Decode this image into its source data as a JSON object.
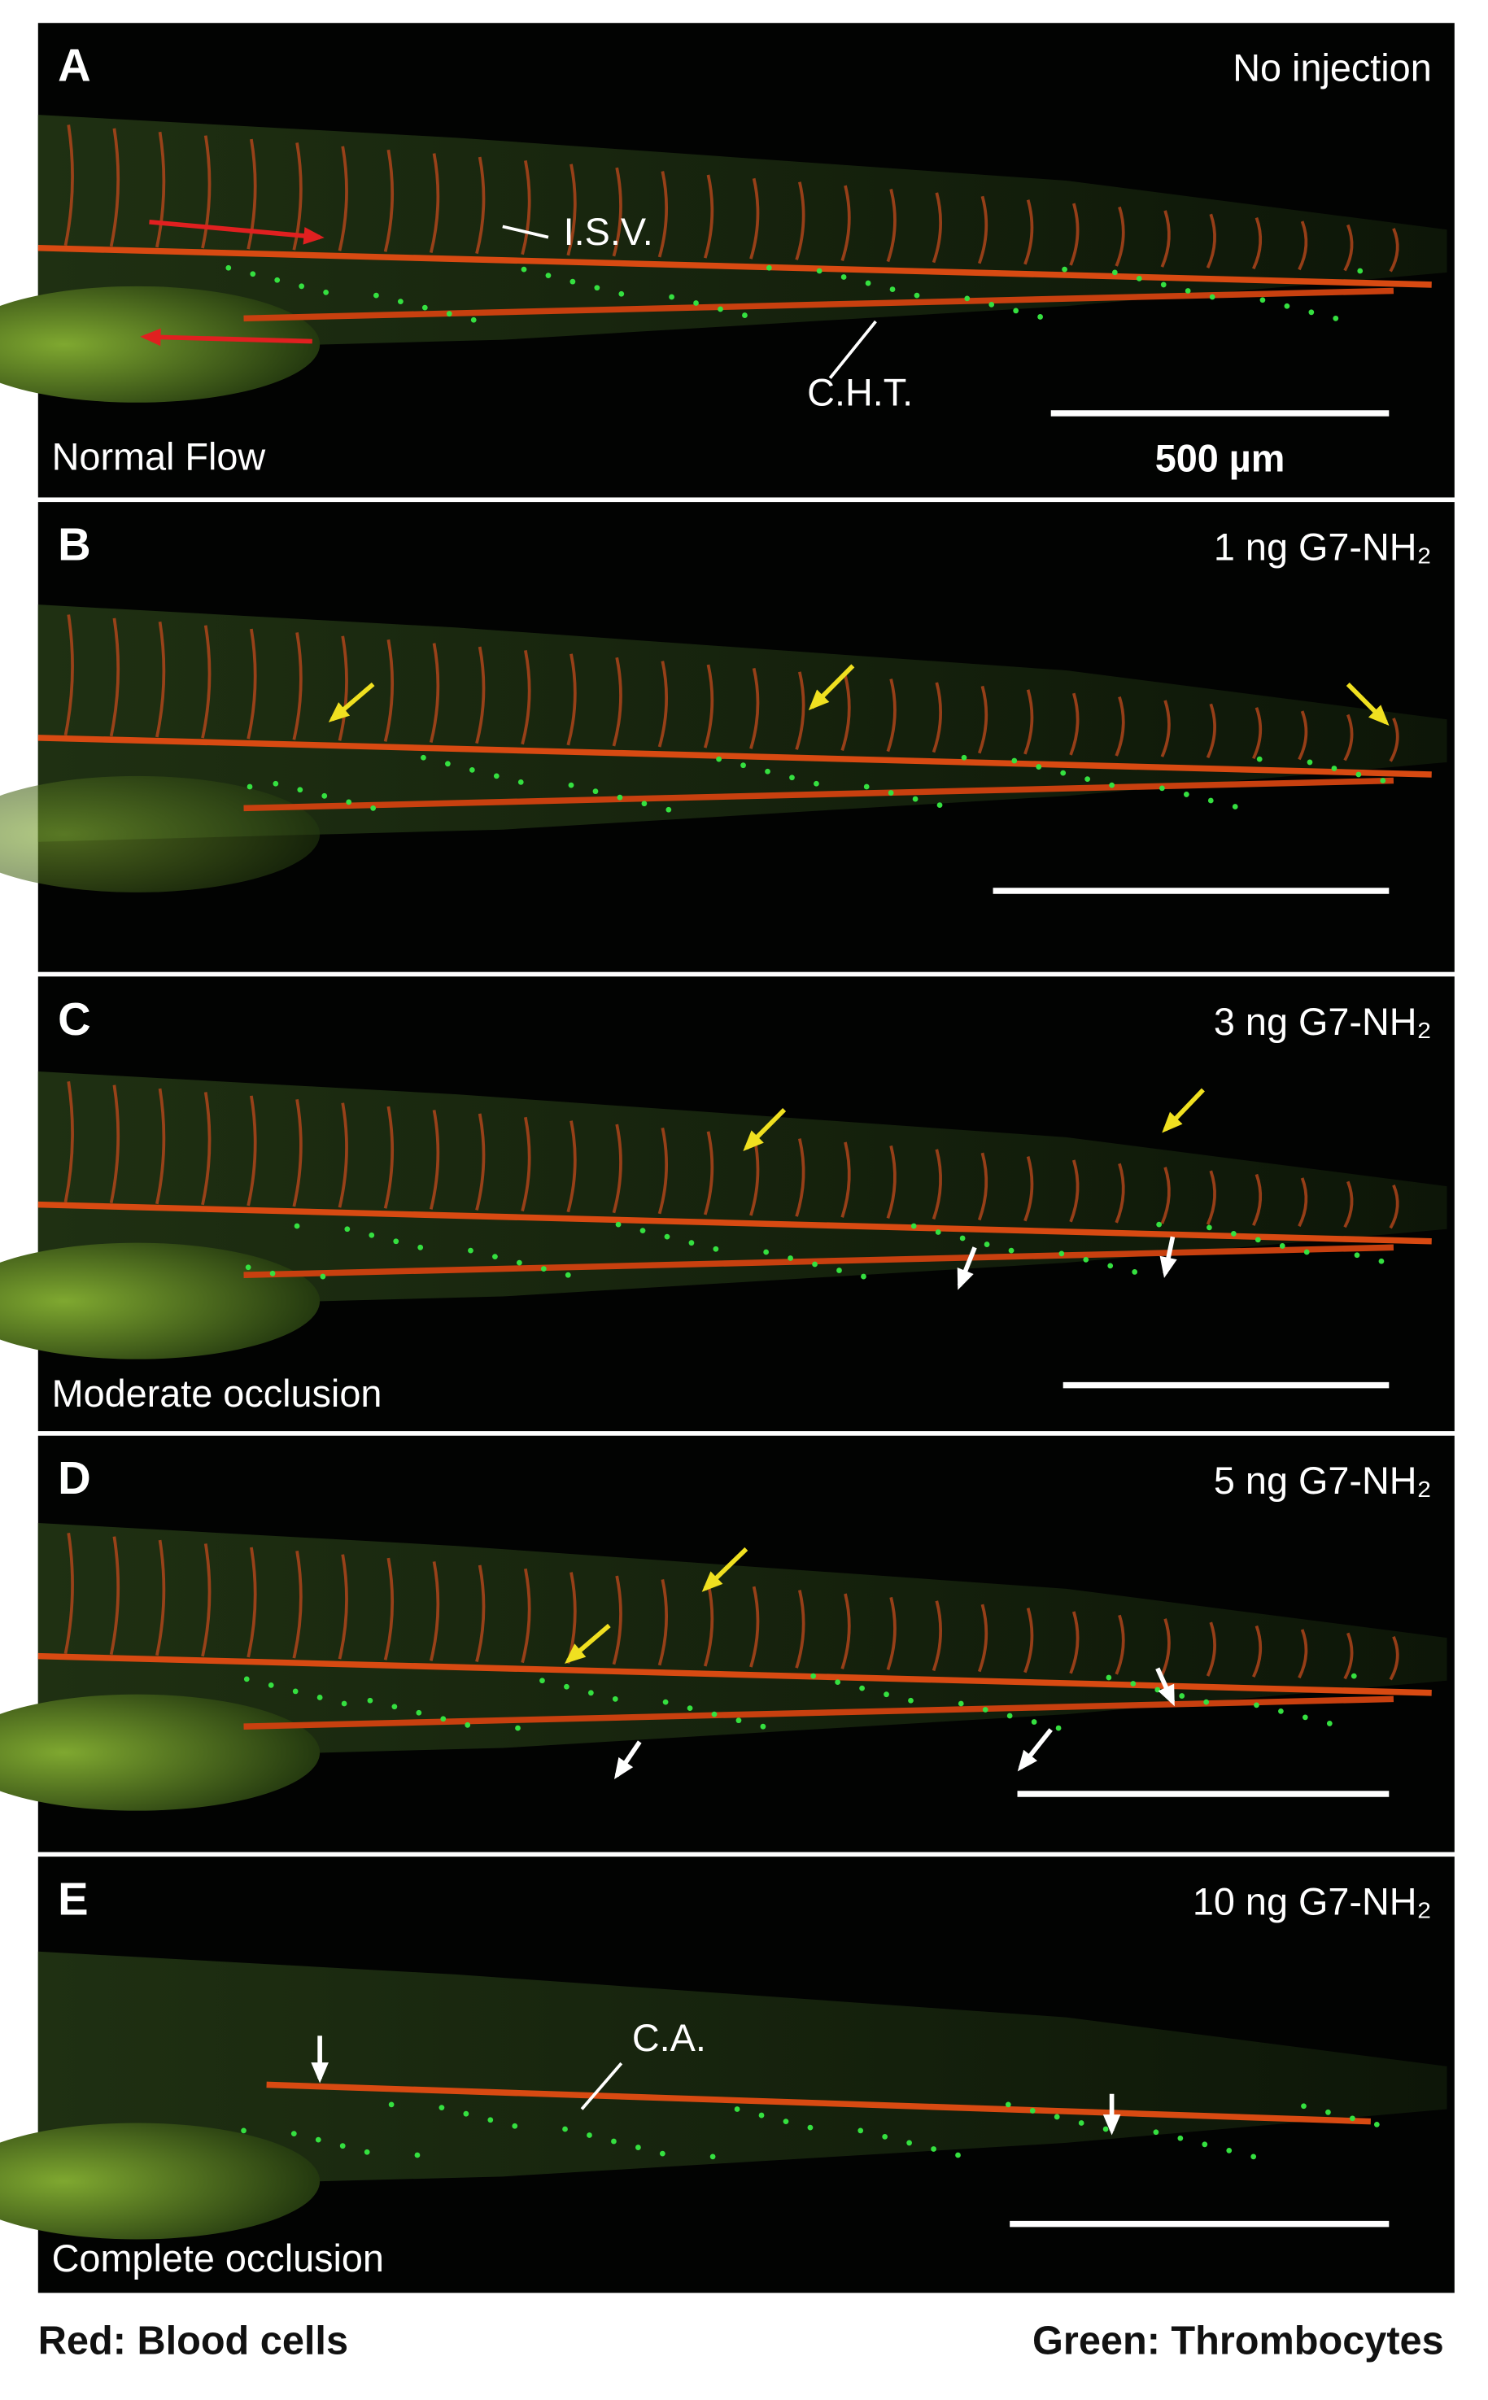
{
  "panels": [
    {
      "letter": "A",
      "condition": "No injection",
      "caption": "Normal Flow",
      "labels": [
        "I.S.V.",
        "C.H.T."
      ],
      "scale_bar": "500 µm"
    },
    {
      "letter": "B",
      "condition": "1 ng G7-NH₂"
    },
    {
      "letter": "C",
      "condition": "3 ng G7-NH₂",
      "caption": "Moderate occlusion"
    },
    {
      "letter": "D",
      "condition": "5 ng G7-NH₂"
    },
    {
      "letter": "E",
      "condition": "10 ng G7-NH₂",
      "caption": "Complete occlusion",
      "labels": [
        "C.A."
      ]
    }
  ],
  "legend": {
    "left": "Red: Blood cells",
    "right": "Green: Thrombocytes"
  }
}
